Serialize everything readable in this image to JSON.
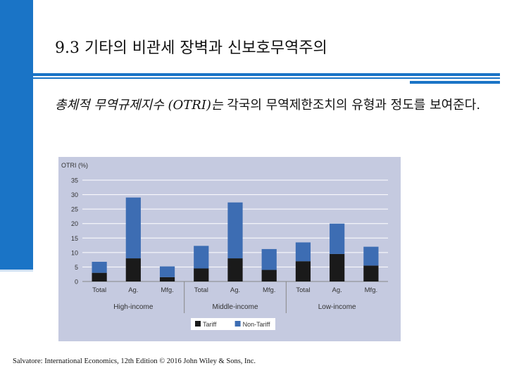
{
  "slide": {
    "title": "9.3  기타의 비관세 장벽과 신보호무역주의",
    "body_highlight": "총체적 무역규제지수 (OTRI)는",
    "body_rest": " 각국의 무역제한조치의 유형과 정도를 보여준다.",
    "footer": "Salvatore: International Economics, 12th Edition © 2016 John Wiley & Sons, Inc."
  },
  "chart_data": {
    "type": "bar",
    "stacked": true,
    "ylabel": "OTRI (%)",
    "ylim": [
      0,
      35
    ],
    "yticks": [
      0,
      5,
      10,
      15,
      20,
      25,
      30,
      35
    ],
    "grid": true,
    "legend_position": "bottom-center",
    "groups": [
      "High-income",
      "Middle-income",
      "Low-income"
    ],
    "categories": [
      "Total",
      "Ag.",
      "Mfg.",
      "Total",
      "Ag.",
      "Mfg.",
      "Total",
      "Ag.",
      "Mfg."
    ],
    "series": [
      {
        "name": "Tariff",
        "color": "#1a1a1a",
        "values": [
          3,
          8,
          1.5,
          4.5,
          8,
          4,
          7,
          9.5,
          5.5
        ]
      },
      {
        "name": "Non-Tariff",
        "color": "#3d6db3",
        "values": [
          3.8,
          21,
          3.7,
          7.8,
          19.3,
          7.2,
          6.5,
          10.5,
          6.5
        ]
      }
    ],
    "plot_background": "#c5cae0"
  }
}
